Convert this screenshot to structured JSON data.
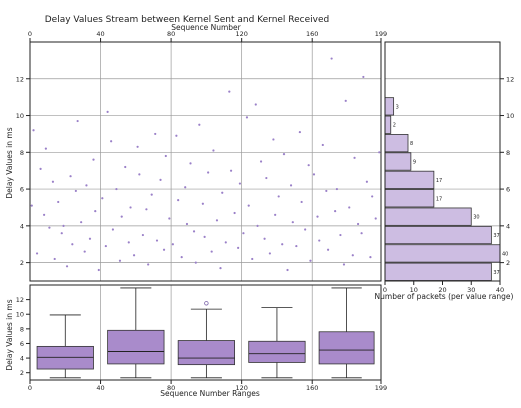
{
  "chart_data": [
    {
      "type": "scatter",
      "title": "Delay Values Stream between Kernel Sent and Kernel Received",
      "xlabel": "Sequence Number",
      "ylabel": "Delay Values in ms",
      "xlim": [
        0,
        199
      ],
      "ylim": [
        1,
        14
      ],
      "xticks": [
        0,
        40,
        80,
        120,
        160,
        199
      ],
      "yticks": [
        2,
        4,
        6,
        8,
        10,
        12
      ],
      "grid": true,
      "color": "#9a80c8",
      "points": [
        [
          1,
          5.1
        ],
        [
          2,
          9.2
        ],
        [
          4,
          2.5
        ],
        [
          6,
          7.1
        ],
        [
          8,
          4.6
        ],
        [
          9,
          8.2
        ],
        [
          11,
          3.9
        ],
        [
          13,
          6.4
        ],
        [
          14,
          2.2
        ],
        [
          16,
          5.3
        ],
        [
          18,
          3.6
        ],
        [
          19,
          4.0
        ],
        [
          21,
          1.8
        ],
        [
          23,
          6.7
        ],
        [
          24,
          3.0
        ],
        [
          26,
          5.9
        ],
        [
          27,
          9.7
        ],
        [
          29,
          4.2
        ],
        [
          31,
          2.6
        ],
        [
          32,
          6.2
        ],
        [
          34,
          3.3
        ],
        [
          36,
          7.6
        ],
        [
          37,
          4.8
        ],
        [
          39,
          1.6
        ],
        [
          41,
          5.5
        ],
        [
          43,
          2.9
        ],
        [
          44,
          10.2
        ],
        [
          46,
          8.6
        ],
        [
          47,
          3.8
        ],
        [
          49,
          6.0
        ],
        [
          51,
          2.1
        ],
        [
          52,
          4.5
        ],
        [
          54,
          7.2
        ],
        [
          56,
          3.1
        ],
        [
          57,
          5.0
        ],
        [
          59,
          2.4
        ],
        [
          61,
          8.3
        ],
        [
          62,
          6.8
        ],
        [
          64,
          3.5
        ],
        [
          66,
          4.9
        ],
        [
          67,
          1.9
        ],
        [
          69,
          5.7
        ],
        [
          71,
          9.0
        ],
        [
          72,
          3.2
        ],
        [
          74,
          6.5
        ],
        [
          76,
          2.7
        ],
        [
          77,
          7.8
        ],
        [
          79,
          4.4
        ],
        [
          81,
          3.0
        ],
        [
          83,
          8.9
        ],
        [
          84,
          5.4
        ],
        [
          86,
          2.3
        ],
        [
          88,
          6.1
        ],
        [
          89,
          4.1
        ],
        [
          91,
          7.4
        ],
        [
          93,
          3.7
        ],
        [
          94,
          2.0
        ],
        [
          96,
          9.5
        ],
        [
          98,
          5.2
        ],
        [
          99,
          3.4
        ],
        [
          101,
          6.9
        ],
        [
          103,
          2.6
        ],
        [
          104,
          8.1
        ],
        [
          106,
          4.3
        ],
        [
          108,
          1.7
        ],
        [
          109,
          5.8
        ],
        [
          111,
          3.1
        ],
        [
          113,
          11.3
        ],
        [
          114,
          7.0
        ],
        [
          116,
          4.7
        ],
        [
          118,
          2.8
        ],
        [
          119,
          6.3
        ],
        [
          121,
          3.6
        ],
        [
          123,
          9.9
        ],
        [
          124,
          5.1
        ],
        [
          126,
          2.2
        ],
        [
          128,
          10.6
        ],
        [
          129,
          4.0
        ],
        [
          131,
          7.5
        ],
        [
          133,
          3.3
        ],
        [
          134,
          6.6
        ],
        [
          136,
          2.5
        ],
        [
          138,
          8.7
        ],
        [
          139,
          4.6
        ],
        [
          141,
          5.6
        ],
        [
          143,
          3.0
        ],
        [
          144,
          7.9
        ],
        [
          146,
          1.6
        ],
        [
          148,
          6.2
        ],
        [
          149,
          4.2
        ],
        [
          151,
          2.9
        ],
        [
          153,
          9.1
        ],
        [
          154,
          5.3
        ],
        [
          156,
          3.8
        ],
        [
          158,
          7.3
        ],
        [
          159,
          2.1
        ],
        [
          161,
          6.8
        ],
        [
          163,
          4.5
        ],
        [
          164,
          3.2
        ],
        [
          166,
          8.4
        ],
        [
          168,
          5.9
        ],
        [
          169,
          2.7
        ],
        [
          171,
          13.1
        ],
        [
          173,
          4.8
        ],
        [
          174,
          6.0
        ],
        [
          176,
          3.5
        ],
        [
          178,
          1.9
        ],
        [
          179,
          10.8
        ],
        [
          181,
          5.0
        ],
        [
          183,
          2.4
        ],
        [
          184,
          7.7
        ],
        [
          186,
          4.1
        ],
        [
          188,
          3.6
        ],
        [
          189,
          12.1
        ],
        [
          191,
          6.4
        ],
        [
          193,
          2.3
        ],
        [
          194,
          5.6
        ],
        [
          196,
          4.4
        ],
        [
          198,
          8.0
        ]
      ]
    },
    {
      "type": "bar",
      "orientation": "horizontal",
      "xlabel": "Number of packets (per value range)",
      "xlim": [
        0,
        40
      ],
      "xticks": [
        0,
        10,
        20,
        30,
        40
      ],
      "color": "#cdbde2",
      "bins": [
        {
          "from": 1,
          "to": 2,
          "count": 37
        },
        {
          "from": 2,
          "to": 3,
          "count": 40
        },
        {
          "from": 3,
          "to": 4,
          "count": 37
        },
        {
          "from": 4,
          "to": 5,
          "count": 30
        },
        {
          "from": 5,
          "to": 6,
          "count": 17
        },
        {
          "from": 6,
          "to": 7,
          "count": 17
        },
        {
          "from": 7,
          "to": 8,
          "count": 9
        },
        {
          "from": 8,
          "to": 9,
          "count": 8
        },
        {
          "from": 9,
          "to": 10,
          "count": 2
        },
        {
          "from": 10,
          "to": 11,
          "count": 3
        }
      ]
    },
    {
      "type": "box",
      "xlabel": "Sequence Number Ranges",
      "ylabel": "Delay Values in ms",
      "xlim": [
        0,
        199
      ],
      "ylim": [
        1,
        14
      ],
      "xticks": [
        0,
        40,
        80,
        120,
        160,
        199
      ],
      "yticks": [
        2,
        4,
        6,
        8,
        10,
        12
      ],
      "color": "#a98bcb",
      "boxes": [
        {
          "range": [
            0,
            40
          ],
          "whisker_low": 1.3,
          "q1": 2.5,
          "median": 4.1,
          "q3": 5.6,
          "whisker_high": 9.9,
          "outliers": []
        },
        {
          "range": [
            40,
            80
          ],
          "whisker_low": 1.3,
          "q1": 3.2,
          "median": 4.9,
          "q3": 7.8,
          "whisker_high": 13.6,
          "outliers": []
        },
        {
          "range": [
            80,
            120
          ],
          "whisker_low": 1.3,
          "q1": 3.1,
          "median": 4.0,
          "q3": 6.4,
          "whisker_high": 10.7,
          "outliers": [
            11.5
          ]
        },
        {
          "range": [
            120,
            160
          ],
          "whisker_low": 1.3,
          "q1": 3.4,
          "median": 4.6,
          "q3": 6.3,
          "whisker_high": 10.9,
          "outliers": []
        },
        {
          "range": [
            160,
            199
          ],
          "whisker_low": 1.3,
          "q1": 3.2,
          "median": 5.1,
          "q3": 7.6,
          "whisker_high": 13.6,
          "outliers": []
        }
      ]
    }
  ]
}
